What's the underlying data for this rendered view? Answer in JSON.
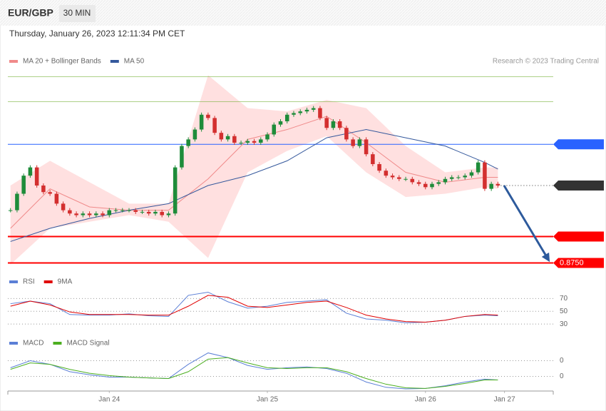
{
  "header": {
    "symbol": "EUR/GBP",
    "interval": "30 MIN",
    "timestamp": "Thursday, January 26, 2023 12:11:34 PM CET"
  },
  "chart_data": [
    {
      "type": "candlestick",
      "credit": "Research © 2023 Trading Central",
      "xlim": [
        -15.4,
        67.4
      ],
      "xticks": [
        {
          "value": 0,
          "label": "Jan 24"
        },
        {
          "value": 24,
          "label": "Jan 25"
        },
        {
          "value": 48,
          "label": "Jan 26"
        },
        {
          "value": 60,
          "label": "Jan 27"
        }
      ],
      "ylim": [
        0.8745,
        0.8875
      ],
      "up_color": "#1e8c3a",
      "down_color": "#d32f2f",
      "band_color": "#ffd6d6",
      "x": [
        -15,
        -14,
        -13,
        -12,
        -11,
        -10,
        -9,
        -8,
        -7,
        -6,
        -5,
        -4,
        -3,
        -2,
        -1,
        0,
        1,
        2,
        3,
        4,
        5,
        6,
        7,
        8,
        9,
        10,
        11,
        12,
        13,
        14,
        15,
        16,
        17,
        18,
        19,
        20,
        21,
        22,
        23,
        24,
        25,
        26,
        27,
        28,
        29,
        30,
        31,
        32,
        33,
        34,
        35,
        36,
        37,
        38,
        39,
        40,
        41,
        42,
        43,
        44,
        45,
        46,
        47,
        48,
        49,
        50,
        51,
        52,
        53,
        54,
        55,
        56,
        57,
        58,
        59
      ],
      "close": [
        0.8782,
        0.8792,
        0.8803,
        0.8808,
        0.8797,
        0.8793,
        0.8792,
        0.8786,
        0.8782,
        0.878,
        0.8779,
        0.878,
        0.8779,
        0.878,
        0.8779,
        0.8782,
        0.8782,
        0.8782,
        0.8782,
        0.8781,
        0.8781,
        0.878,
        0.8781,
        0.8779,
        0.878,
        0.8808,
        0.8821,
        0.8825,
        0.8831,
        0.884,
        0.8838,
        0.8829,
        0.8825,
        0.8827,
        0.8823,
        0.8823,
        0.8824,
        0.8823,
        0.8825,
        0.8828,
        0.8834,
        0.8836,
        0.884,
        0.8841,
        0.8842,
        0.8843,
        0.8844,
        0.8838,
        0.8832,
        0.8836,
        0.8832,
        0.8825,
        0.8821,
        0.8825,
        0.8816,
        0.881,
        0.8806,
        0.8803,
        0.8802,
        0.8801,
        0.8801,
        0.8799,
        0.8798,
        0.8796,
        0.8798,
        0.8799,
        0.8801,
        0.8802,
        0.8802,
        0.8803,
        0.8805,
        0.8811,
        0.8795,
        0.8798,
        0.8797
      ],
      "series": [
        {
          "name": "MA 20 + Bollinger Bands",
          "color": "#f08a8a",
          "x": [
            -15,
            -9,
            -3,
            3,
            9,
            15,
            21,
            27,
            33,
            39,
            45,
            51,
            57,
            59
          ],
          "values": [
            0.8771,
            0.8795,
            0.8784,
            0.8782,
            0.8782,
            0.8801,
            0.8825,
            0.8831,
            0.8839,
            0.8823,
            0.8805,
            0.8799,
            0.8802,
            0.8802
          ],
          "upper": [
            0.8797,
            0.8812,
            0.8799,
            0.8786,
            0.8786,
            0.8864,
            0.8844,
            0.8842,
            0.8849,
            0.8844,
            0.8821,
            0.8805,
            0.8808,
            0.8808
          ],
          "lower": [
            0.8749,
            0.8771,
            0.8775,
            0.8779,
            0.8775,
            0.8753,
            0.8805,
            0.8818,
            0.8827,
            0.8805,
            0.879,
            0.8792,
            0.8796,
            0.8795
          ]
        },
        {
          "name": "MA 50",
          "color": "#34589c",
          "x": [
            -15,
            -9,
            -3,
            3,
            9,
            15,
            21,
            27,
            33,
            39,
            45,
            51,
            57,
            59
          ],
          "values": [
            0.8763,
            0.8771,
            0.8777,
            0.8782,
            0.8786,
            0.8797,
            0.8803,
            0.8812,
            0.8826,
            0.8831,
            0.8826,
            0.8821,
            0.8811,
            0.8807
          ]
        }
      ],
      "levels": [
        {
          "value": 0.8863,
          "color": "#7cb342",
          "style": "plain"
        },
        {
          "value": 0.8848,
          "color": "#7cb342",
          "style": "plain"
        },
        {
          "value": 0.8822,
          "color": "#2962ff",
          "style": "boxed"
        },
        {
          "value": 0.8797,
          "color": "#333333",
          "style": "dotted"
        },
        {
          "value": 0.8766,
          "color": "#ff0000",
          "style": "thick"
        },
        {
          "value": 0.875,
          "label": "0.8750",
          "color": "#ff0000",
          "style": "thick"
        }
      ]
    },
    {
      "type": "line",
      "ylim": [
        19,
        85
      ],
      "yticks": [
        70,
        50,
        30
      ],
      "series": [
        {
          "name": "RSI",
          "color": "#5b7fd6",
          "x": [
            -15,
            -12,
            -9,
            -6,
            -3,
            0,
            3,
            6,
            9,
            12,
            15,
            18,
            21,
            24,
            27,
            30,
            33,
            36,
            39,
            42,
            45,
            48,
            51,
            54,
            57,
            59
          ],
          "values": [
            62,
            66,
            62,
            45,
            44,
            44,
            46,
            43,
            42,
            75,
            80,
            65,
            55,
            58,
            64,
            66,
            68,
            47,
            38,
            36,
            32,
            33,
            36,
            42,
            44,
            43
          ]
        },
        {
          "name": "9MA",
          "color": "#e00000",
          "x": [
            -15,
            -12,
            -9,
            -6,
            -3,
            0,
            3,
            6,
            9,
            12,
            15,
            18,
            21,
            24,
            27,
            30,
            33,
            36,
            39,
            42,
            45,
            48,
            51,
            54,
            57,
            59
          ],
          "values": [
            58,
            66,
            60,
            49,
            45,
            45,
            45,
            44,
            44,
            58,
            75,
            72,
            58,
            56,
            60,
            64,
            66,
            56,
            44,
            38,
            34,
            33,
            36,
            42,
            45,
            44
          ]
        }
      ]
    },
    {
      "type": "line",
      "ylim": [
        -0.0008,
        0.0018
      ],
      "yticks": [
        {
          "value": 0.001,
          "label": "0"
        },
        {
          "value": 0,
          "label": "0"
        }
      ],
      "series": [
        {
          "name": "MACD",
          "color": "#5b7fd6",
          "x": [
            -15,
            -12,
            -9,
            -6,
            -3,
            0,
            3,
            6,
            9,
            12,
            15,
            18,
            21,
            24,
            27,
            30,
            33,
            36,
            39,
            42,
            45,
            48,
            51,
            54,
            57,
            59
          ],
          "values": [
            0.00055,
            0.001,
            0.00077,
            0.0003,
            0.0001,
            -5e-05,
            -5e-05,
            -0.0001,
            -0.00014,
            0.00077,
            0.0015,
            0.0012,
            0.0007,
            0.00045,
            0.00055,
            0.0006,
            0.0005,
            0.0002,
            -0.00036,
            -0.0007,
            -0.0008,
            -0.00077,
            -0.0006,
            -0.00036,
            -0.00018,
            -0.00023
          ]
        },
        {
          "name": "MACD Signal",
          "color": "#4caf20",
          "x": [
            -15,
            -12,
            -9,
            -6,
            -3,
            0,
            3,
            6,
            9,
            12,
            15,
            18,
            21,
            24,
            27,
            30,
            33,
            36,
            39,
            42,
            45,
            48,
            51,
            54,
            57,
            59
          ],
          "values": [
            0.00045,
            0.00086,
            0.00077,
            0.00045,
            0.0002,
            5e-05,
            -5e-05,
            -0.0001,
            -0.00014,
            0.0003,
            0.0011,
            0.0012,
            0.00086,
            0.00055,
            0.0005,
            0.00055,
            0.00055,
            0.0003,
            -0.00014,
            -0.0005,
            -0.00073,
            -0.00077,
            -0.00064,
            -0.00045,
            -0.00023,
            -0.00023
          ]
        }
      ]
    }
  ]
}
